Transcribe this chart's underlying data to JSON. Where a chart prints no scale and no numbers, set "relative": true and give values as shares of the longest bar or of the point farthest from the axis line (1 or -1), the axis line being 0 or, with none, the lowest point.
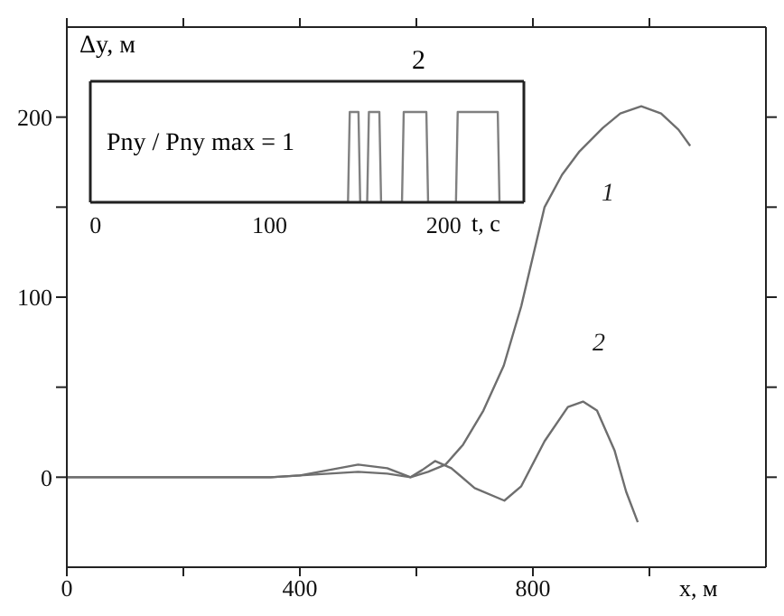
{
  "chart_data": [
    {
      "type": "line",
      "xlabel": "x, м",
      "ylabel": "Δy, м",
      "xlim": [
        0,
        1200
      ],
      "ylim": [
        -50,
        250
      ],
      "xticks": [
        0,
        {
          "value": 200,
          "label": null
        },
        400,
        {
          "value": 600,
          "label": null
        },
        800,
        {
          "value": 1000,
          "label": null
        }
      ],
      "yticks": [
        0,
        {
          "value": 50,
          "label": null
        },
        100,
        {
          "value": 150,
          "label": null
        },
        200
      ],
      "series": [
        {
          "name": "1",
          "color": "#6e6e6e",
          "x": [
            0,
            300,
            350,
            400,
            450,
            500,
            550,
            590,
            620,
            650,
            680,
            715,
            750,
            780,
            820,
            850,
            880,
            920,
            950,
            986,
            1020,
            1050,
            1070
          ],
          "values": [
            0,
            0,
            0,
            1,
            4,
            7,
            5,
            0,
            3,
            7,
            18,
            37,
            62,
            95,
            150,
            168,
            181,
            194,
            202,
            206,
            202,
            193,
            184
          ]
        },
        {
          "name": "2",
          "color": "#6e6e6e",
          "x": [
            0,
            350,
            400,
            450,
            500,
            550,
            590,
            610,
            632,
            660,
            700,
            751,
            780,
            820,
            860,
            886,
            910,
            940,
            960,
            980
          ],
          "values": [
            0,
            0,
            1,
            2,
            3,
            2,
            0,
            4,
            9,
            5,
            -6,
            -13,
            -5,
            20,
            39,
            42,
            37,
            15,
            -8,
            -25
          ]
        }
      ]
    },
    {
      "type": "line",
      "title": "2",
      "xlabel": "t, с",
      "relative": true,
      "tick_labels": "x",
      "xlim": [
        -3,
        246
      ],
      "xticks": [
        0,
        100,
        200
      ],
      "color": "#808080",
      "annotations": [
        "Pny / Pny max = 1"
      ],
      "x": [
        0,
        145,
        146,
        151,
        152,
        156,
        157,
        163,
        164,
        176,
        177,
        190,
        191,
        207,
        208,
        231,
        232,
        245
      ],
      "values": [
        0,
        0,
        1,
        1,
        0,
        0,
        1,
        1,
        0,
        0,
        1,
        1,
        0,
        0,
        1,
        1,
        0,
        0
      ]
    }
  ]
}
